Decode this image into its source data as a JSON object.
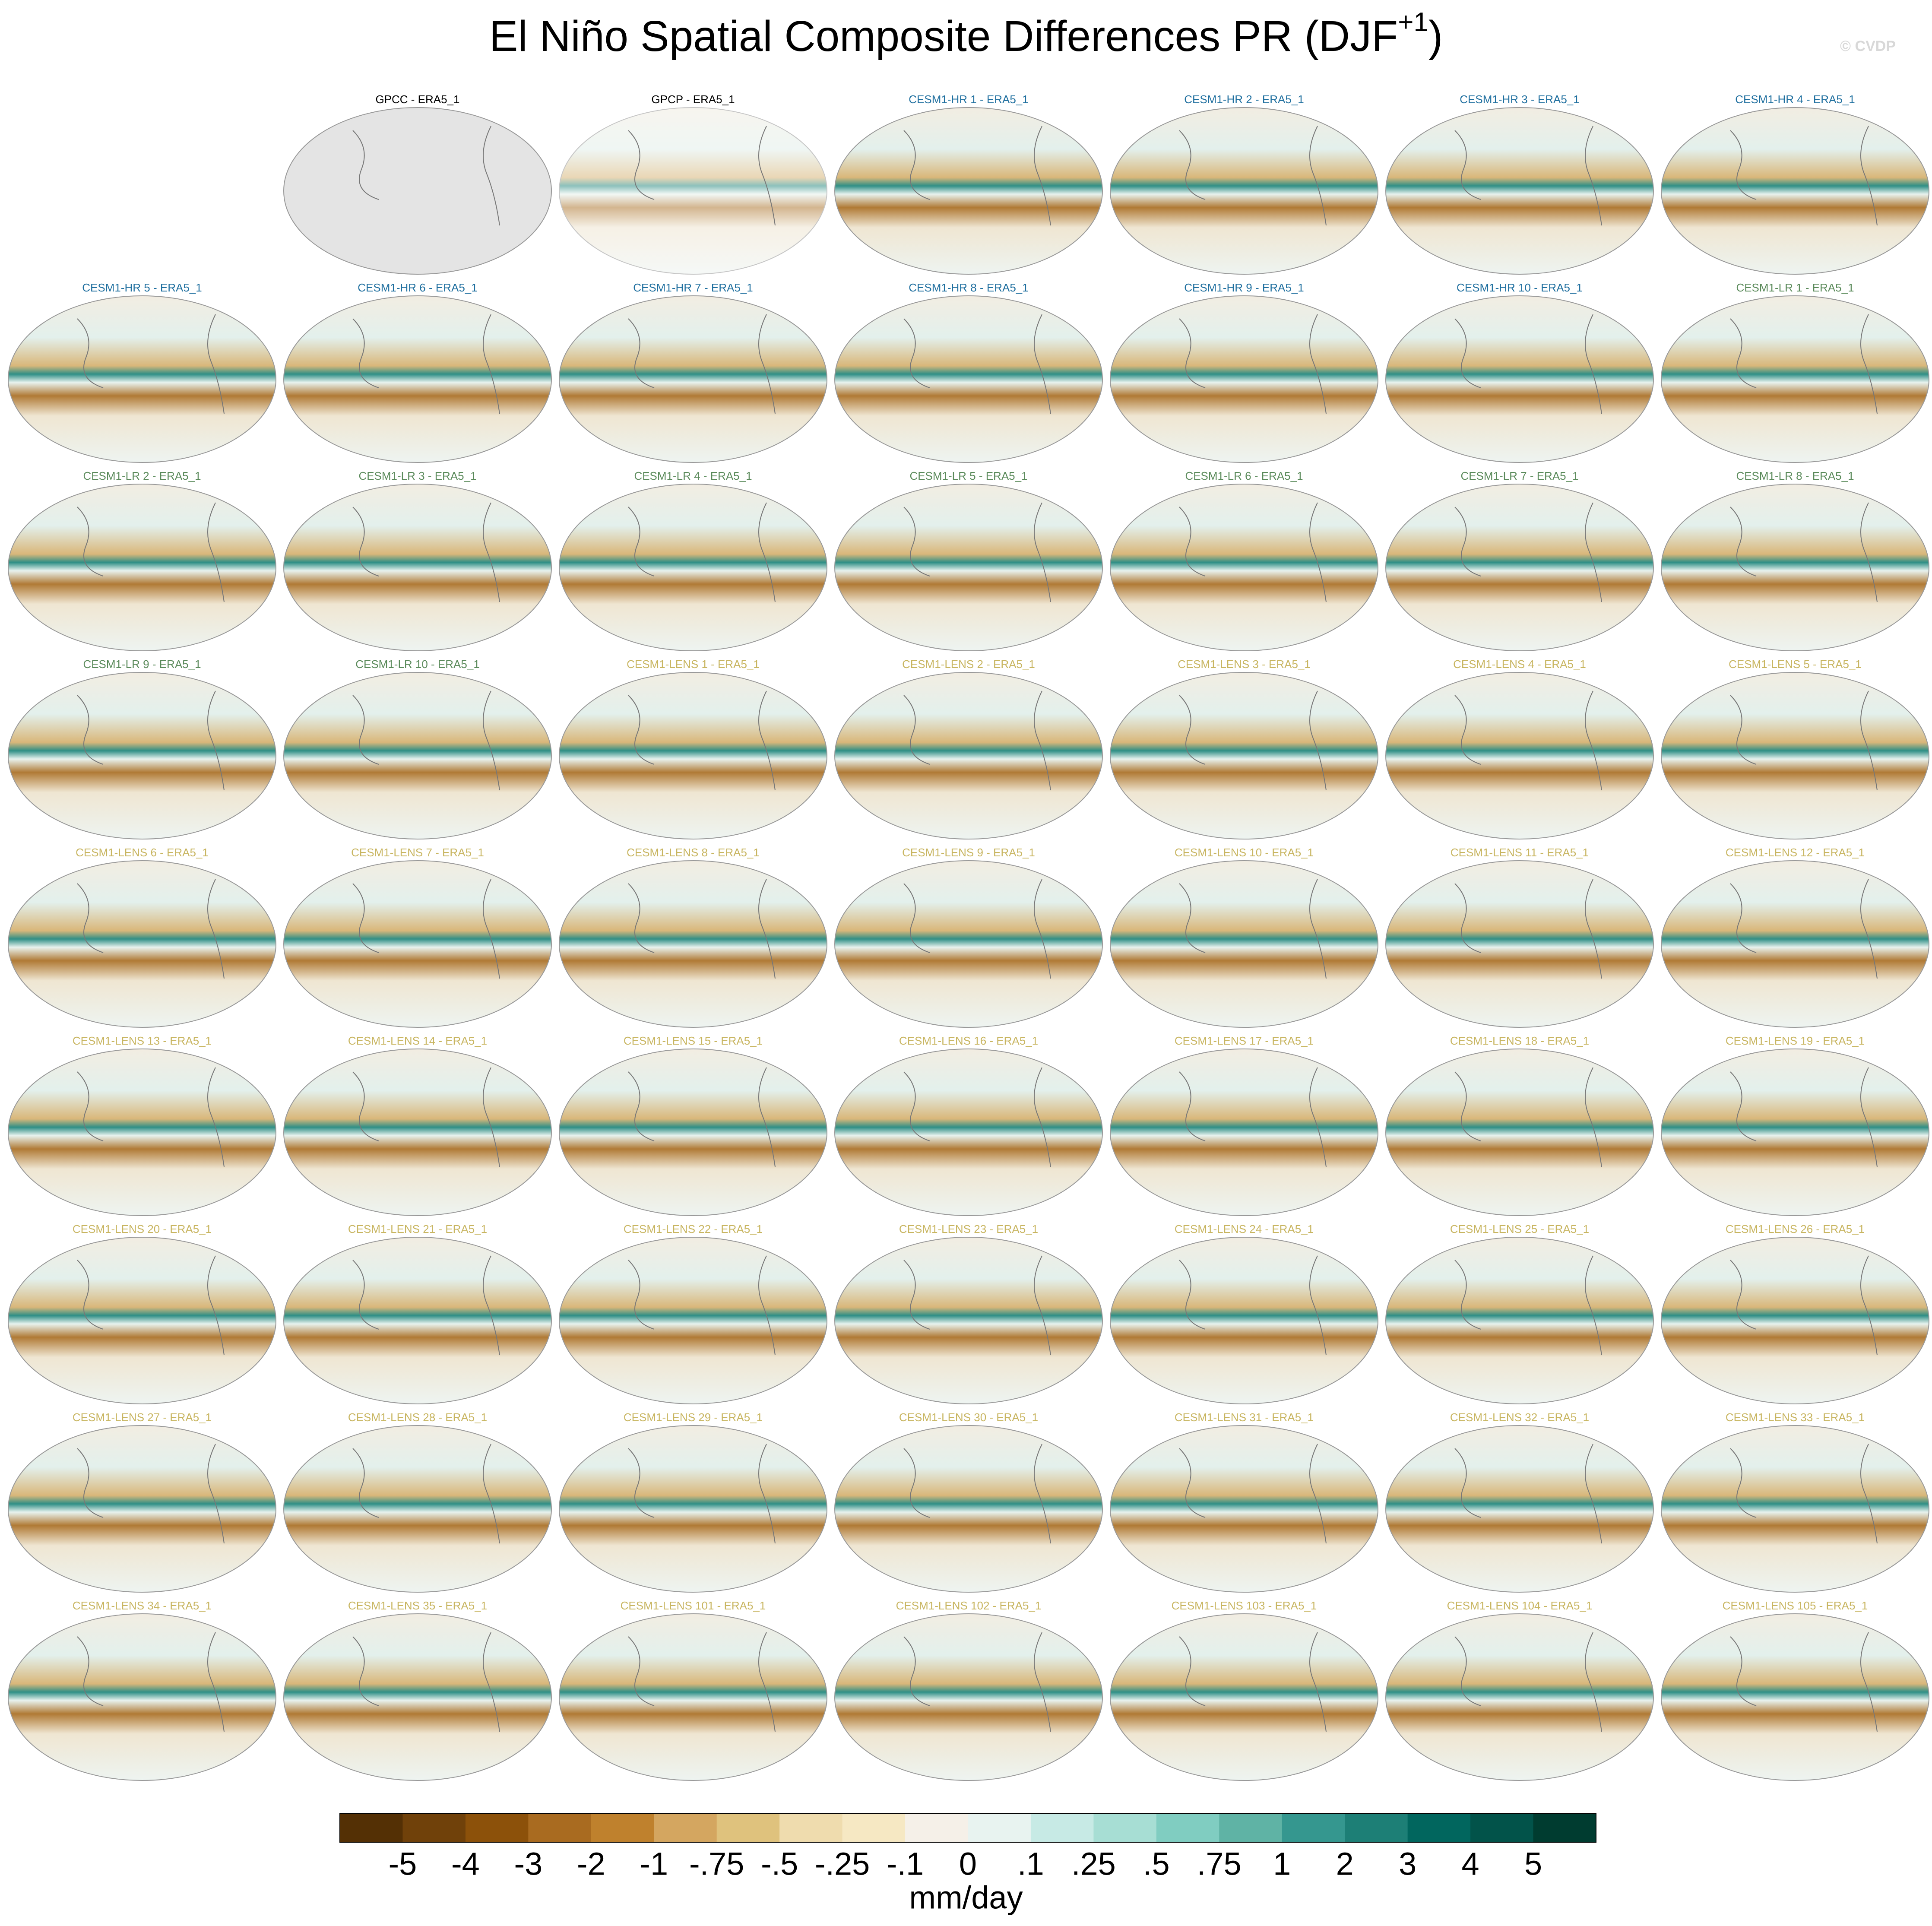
{
  "chart_data": {
    "type": "map",
    "title": {
      "text": "El Niño Spatial Composite Differences PR (DJF",
      "superscript": "+1",
      "close": ")"
    },
    "watermark": "© CVDP",
    "panels": [
      {
        "label": "GPCC - ERA5_1",
        "color": "#000000"
      },
      {
        "label": "GPCP - ERA5_1",
        "color": "#000000"
      },
      {
        "label": "CESM1-HR 1 - ERA5_1",
        "color": "#1f6f9f"
      },
      {
        "label": "CESM1-HR 2 - ERA5_1",
        "color": "#1f6f9f"
      },
      {
        "label": "CESM1-HR 3 - ERA5_1",
        "color": "#1f6f9f"
      },
      {
        "label": "CESM1-HR 4 - ERA5_1",
        "color": "#1f6f9f"
      },
      {
        "label": "CESM1-HR 5 - ERA5_1",
        "color": "#1f6f9f"
      },
      {
        "label": "CESM1-HR 6 - ERA5_1",
        "color": "#1f6f9f"
      },
      {
        "label": "CESM1-HR 7 - ERA5_1",
        "color": "#1f6f9f"
      },
      {
        "label": "CESM1-HR 8 - ERA5_1",
        "color": "#1f6f9f"
      },
      {
        "label": "CESM1-HR 9 - ERA5_1",
        "color": "#1f6f9f"
      },
      {
        "label": "CESM1-HR 10 - ERA5_1",
        "color": "#1f6f9f"
      },
      {
        "label": "CESM1-LR 1 - ERA5_1",
        "color": "#5a8a5a"
      },
      {
        "label": "CESM1-LR 2 - ERA5_1",
        "color": "#5a8a5a"
      },
      {
        "label": "CESM1-LR 3 - ERA5_1",
        "color": "#5a8a5a"
      },
      {
        "label": "CESM1-LR 4 - ERA5_1",
        "color": "#5a8a5a"
      },
      {
        "label": "CESM1-LR 5 - ERA5_1",
        "color": "#5a8a5a"
      },
      {
        "label": "CESM1-LR 6 - ERA5_1",
        "color": "#5a8a5a"
      },
      {
        "label": "CESM1-LR 7 - ERA5_1",
        "color": "#5a8a5a"
      },
      {
        "label": "CESM1-LR 8 - ERA5_1",
        "color": "#5a8a5a"
      },
      {
        "label": "CESM1-LR 9 - ERA5_1",
        "color": "#5a8a5a"
      },
      {
        "label": "CESM1-LR 10 - ERA5_1",
        "color": "#5a8a5a"
      },
      {
        "label": "CESM1-LENS 1 - ERA5_1",
        "color": "#c8b560"
      },
      {
        "label": "CESM1-LENS 2 - ERA5_1",
        "color": "#c8b560"
      },
      {
        "label": "CESM1-LENS 3 - ERA5_1",
        "color": "#c8b560"
      },
      {
        "label": "CESM1-LENS 4 - ERA5_1",
        "color": "#c8b560"
      },
      {
        "label": "CESM1-LENS 5 - ERA5_1",
        "color": "#c8b560"
      },
      {
        "label": "CESM1-LENS 6 - ERA5_1",
        "color": "#c8b560"
      },
      {
        "label": "CESM1-LENS 7 - ERA5_1",
        "color": "#c8b560"
      },
      {
        "label": "CESM1-LENS 8 - ERA5_1",
        "color": "#c8b560"
      },
      {
        "label": "CESM1-LENS 9 - ERA5_1",
        "color": "#c8b560"
      },
      {
        "label": "CESM1-LENS 10 - ERA5_1",
        "color": "#c8b560"
      },
      {
        "label": "CESM1-LENS 11 - ERA5_1",
        "color": "#c8b560"
      },
      {
        "label": "CESM1-LENS 12 - ERA5_1",
        "color": "#c8b560"
      },
      {
        "label": "CESM1-LENS 13 - ERA5_1",
        "color": "#c8b560"
      },
      {
        "label": "CESM1-LENS 14 - ERA5_1",
        "color": "#c8b560"
      },
      {
        "label": "CESM1-LENS 15 - ERA5_1",
        "color": "#c8b560"
      },
      {
        "label": "CESM1-LENS 16 - ERA5_1",
        "color": "#c8b560"
      },
      {
        "label": "CESM1-LENS 17 - ERA5_1",
        "color": "#c8b560"
      },
      {
        "label": "CESM1-LENS 18 - ERA5_1",
        "color": "#c8b560"
      },
      {
        "label": "CESM1-LENS 19 - ERA5_1",
        "color": "#c8b560"
      },
      {
        "label": "CESM1-LENS 20 - ERA5_1",
        "color": "#c8b560"
      },
      {
        "label": "CESM1-LENS 21 - ERA5_1",
        "color": "#c8b560"
      },
      {
        "label": "CESM1-LENS 22 - ERA5_1",
        "color": "#c8b560"
      },
      {
        "label": "CESM1-LENS 23 - ERA5_1",
        "color": "#c8b560"
      },
      {
        "label": "CESM1-LENS 24 - ERA5_1",
        "color": "#c8b560"
      },
      {
        "label": "CESM1-LENS 25 - ERA5_1",
        "color": "#c8b560"
      },
      {
        "label": "CESM1-LENS 26 - ERA5_1",
        "color": "#c8b560"
      },
      {
        "label": "CESM1-LENS 27 - ERA5_1",
        "color": "#c8b560"
      },
      {
        "label": "CESM1-LENS 28 - ERA5_1",
        "color": "#c8b560"
      },
      {
        "label": "CESM1-LENS 29 - ERA5_1",
        "color": "#c8b560"
      },
      {
        "label": "CESM1-LENS 30 - ERA5_1",
        "color": "#c8b560"
      },
      {
        "label": "CESM1-LENS 31 - ERA5_1",
        "color": "#c8b560"
      },
      {
        "label": "CESM1-LENS 32 - ERA5_1",
        "color": "#c8b560"
      },
      {
        "label": "CESM1-LENS 33 - ERA5_1",
        "color": "#c8b560"
      },
      {
        "label": "CESM1-LENS 34 - ERA5_1",
        "color": "#c8b560"
      },
      {
        "label": "CESM1-LENS 35 - ERA5_1",
        "color": "#c8b560"
      },
      {
        "label": "CESM1-LENS 101 - ERA5_1",
        "color": "#c8b560"
      },
      {
        "label": "CESM1-LENS 102 - ERA5_1",
        "color": "#c8b560"
      },
      {
        "label": "CESM1-LENS 103 - ERA5_1",
        "color": "#c8b560"
      },
      {
        "label": "CESM1-LENS 104 - ERA5_1",
        "color": "#c8b560"
      },
      {
        "label": "CESM1-LENS 105 - ERA5_1",
        "color": "#c8b560"
      }
    ],
    "colorbar": {
      "colors": [
        "#543005",
        "#70410a",
        "#8c510a",
        "#a96b20",
        "#bf812d",
        "#d4a660",
        "#dfc27d",
        "#efdcae",
        "#f6e8c3",
        "#f5f0e8",
        "#e8f3f0",
        "#c7eae5",
        "#a7ded4",
        "#80cdc1",
        "#5fb3a5",
        "#35978f",
        "#1d7f76",
        "#01665e",
        "#02534a",
        "#003c30"
      ],
      "ticks": [
        -5,
        -4,
        -3,
        -2,
        -1,
        {
          "value": -0.75,
          "label": "-.75"
        },
        {
          "value": -0.5,
          "label": "-.5"
        },
        {
          "value": -0.25,
          "label": "-.25"
        },
        {
          "value": -0.1,
          "label": "-.1"
        },
        0,
        {
          "value": 0.1,
          "label": ".1"
        },
        {
          "value": 0.25,
          "label": ".25"
        },
        {
          "value": 0.5,
          "label": ".5"
        },
        {
          "value": 0.75,
          "label": ".75"
        },
        1,
        2,
        3,
        4,
        5
      ],
      "units": "mm/day"
    }
  }
}
